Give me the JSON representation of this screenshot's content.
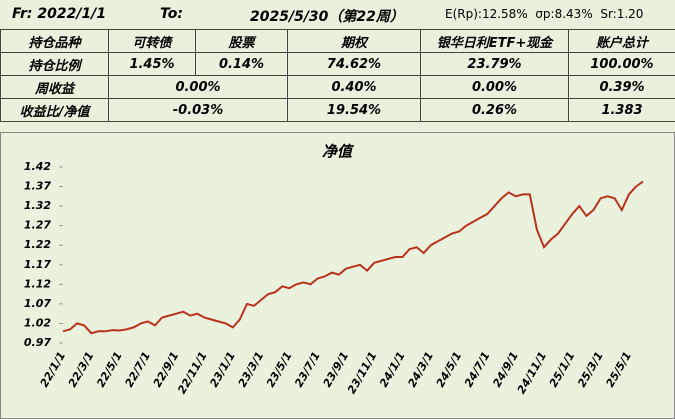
{
  "header": {
    "from": "Fr: 2022/1/1",
    "to_label": "To:",
    "to": "2025/5/30（第22周）",
    "stats": "E(Rp):12.58%  σp:8.43%  Sr:1.20"
  },
  "table": {
    "rows": [
      [
        "持仓品种",
        "可转债",
        "股票",
        "期权",
        "银华日利ETF+现金",
        "账户总计"
      ],
      [
        "持仓比例",
        "1.45%",
        "0.14%",
        "74.62%",
        "23.79%",
        "100.00%"
      ],
      [
        "周收益",
        "0.00%",
        "0.40%",
        "0.00%",
        "0.39%"
      ],
      [
        "收益比/净值",
        "-0.03%",
        "19.54%",
        "0.26%",
        "1.383"
      ]
    ]
  },
  "chart_data": {
    "type": "line",
    "title": "净值",
    "color": "#b8321c",
    "grid": false,
    "ylim": [
      0.97,
      1.42
    ],
    "yticks": [
      0.97,
      1.02,
      1.07,
      1.12,
      1.17,
      1.22,
      1.27,
      1.32,
      1.37,
      1.42
    ],
    "categories": [
      "22/1/1",
      null,
      null,
      null,
      "22/3/1",
      null,
      null,
      null,
      "22/5/1",
      null,
      null,
      null,
      "22/7/1",
      null,
      null,
      null,
      "22/9/1",
      null,
      null,
      null,
      "22/11/1",
      null,
      null,
      null,
      "23/1/1",
      null,
      null,
      null,
      "23/3/1",
      null,
      null,
      null,
      "23/5/1",
      null,
      null,
      null,
      "23/7/1",
      null,
      null,
      null,
      "23/9/1",
      null,
      null,
      null,
      "23/11/1",
      null,
      null,
      null,
      "24/1/1",
      null,
      null,
      null,
      "24/3/1",
      null,
      null,
      null,
      "24/5/1",
      null,
      null,
      null,
      "24/7/1",
      null,
      null,
      null,
      "24/9/1",
      null,
      null,
      null,
      "24/11/1",
      null,
      null,
      null,
      "25/1/1",
      null,
      null,
      null,
      "25/3/1",
      null,
      null,
      null,
      "25/5/1",
      null,
      null
    ],
    "values": [
      1.0,
      1.005,
      1.02,
      1.015,
      0.995,
      1.0,
      1.0,
      1.003,
      1.002,
      1.005,
      1.01,
      1.02,
      1.025,
      1.015,
      1.035,
      1.04,
      1.045,
      1.05,
      1.04,
      1.045,
      1.035,
      1.03,
      1.025,
      1.02,
      1.01,
      1.03,
      1.07,
      1.065,
      1.08,
      1.095,
      1.1,
      1.115,
      1.11,
      1.12,
      1.125,
      1.12,
      1.135,
      1.14,
      1.15,
      1.145,
      1.16,
      1.165,
      1.17,
      1.155,
      1.175,
      1.18,
      1.185,
      1.19,
      1.19,
      1.21,
      1.215,
      1.2,
      1.22,
      1.23,
      1.24,
      1.25,
      1.255,
      1.27,
      1.28,
      1.29,
      1.3,
      1.32,
      1.34,
      1.355,
      1.345,
      1.35,
      1.35,
      1.26,
      1.215,
      1.235,
      1.25,
      1.275,
      1.3,
      1.32,
      1.295,
      1.31,
      1.34,
      1.345,
      1.34,
      1.31,
      1.35,
      1.37,
      1.383
    ]
  }
}
